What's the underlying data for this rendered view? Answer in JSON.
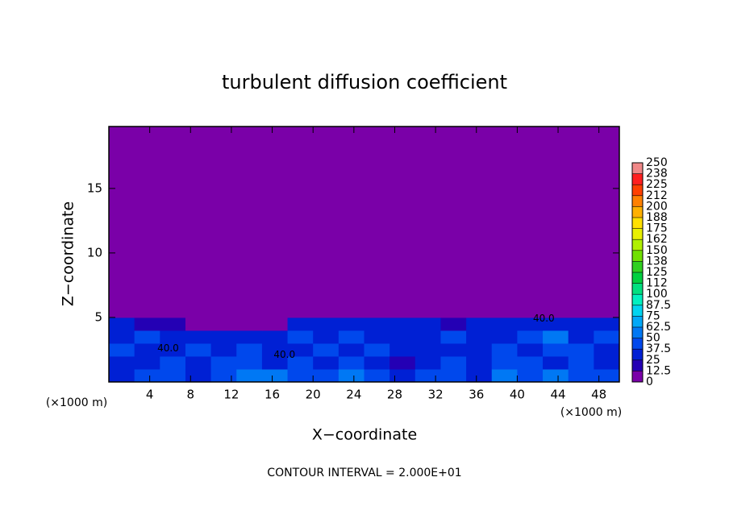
{
  "chart_data": {
    "type": "heatmap",
    "title": "turbulent diffusion coefficient",
    "xlabel": "X−coordinate",
    "ylabel": "Z−coordinate",
    "x_unit": "(×1000 m)",
    "y_unit": "(×1000 m)",
    "footnote": "CONTOUR INTERVAL = 2.000E+01",
    "xlim": [
      0,
      50
    ],
    "ylim": [
      0,
      19.8
    ],
    "xticks": [
      4,
      8,
      12,
      16,
      20,
      24,
      28,
      32,
      36,
      40,
      44,
      48
    ],
    "yticks": [
      5,
      10,
      15
    ],
    "x_edges": [
      0,
      2.5,
      5,
      7.5,
      10,
      12.5,
      15,
      17.5,
      20,
      22.5,
      25,
      27.5,
      30,
      32.5,
      35,
      37.5,
      40,
      42.5,
      45,
      47.5,
      50
    ],
    "y_edges": [
      0,
      1,
      2,
      3,
      4,
      5,
      19.8
    ],
    "z": [
      [
        30,
        45,
        40,
        35,
        40,
        55,
        60,
        45,
        40,
        50,
        45,
        25,
        40,
        45,
        35,
        50,
        45,
        50,
        40,
        45
      ],
      [
        35,
        30,
        40,
        35,
        45,
        45,
        30,
        40,
        35,
        40,
        35,
        20,
        35,
        40,
        30,
        45,
        40,
        35,
        45,
        35
      ],
      [
        40,
        35,
        30,
        40,
        35,
        45,
        35,
        35,
        40,
        35,
        40,
        25,
        30,
        35,
        35,
        40,
        35,
        45,
        40,
        35
      ],
      [
        35,
        40,
        30,
        30,
        30,
        25,
        35,
        40,
        35,
        45,
        35,
        30,
        35,
        40,
        30,
        35,
        40,
        50,
        35,
        40
      ],
      [
        25,
        20,
        15,
        10,
        10,
        5,
        10,
        25,
        30,
        30,
        35,
        30,
        25,
        20,
        25,
        30,
        35,
        30,
        30,
        25
      ],
      [
        0,
        0,
        0,
        0,
        0,
        0,
        0,
        0,
        0,
        0,
        0,
        0,
        0,
        0,
        0,
        0,
        0,
        0,
        0,
        0
      ]
    ],
    "contour_labels": [
      {
        "text": "40.0",
        "x": 5.8,
        "z": 2.6
      },
      {
        "text": "40.0",
        "x": 17.2,
        "z": 2.1
      },
      {
        "text": "40.0",
        "x": 42.6,
        "z": 4.9
      }
    ],
    "colorbar": {
      "ticks": [
        0,
        12.5,
        25,
        37.5,
        50,
        62.5,
        75,
        87.5,
        100,
        {
          "value": 112.5,
          "label": "112"
        },
        125,
        {
          "value": 137.5,
          "label": "138"
        },
        150,
        {
          "value": 162.5,
          "label": "162"
        },
        175,
        {
          "value": 187.5,
          "label": "188"
        },
        200,
        {
          "value": 212.5,
          "label": "212"
        },
        225,
        {
          "value": 237.5,
          "label": "238"
        },
        250
      ],
      "colors": [
        "#7a00a8",
        "#2400b4",
        "#0020d4",
        "#0048ec",
        "#0078f4",
        "#00a8f8",
        "#00d4f0",
        "#00f0c0",
        "#00e080",
        "#00d040",
        "#30d020",
        "#70e000",
        "#b0f000",
        "#e8f000",
        "#ffe000",
        "#ffb000",
        "#ff8000",
        "#ff4000",
        "#ff2020",
        "#f08888"
      ]
    }
  }
}
